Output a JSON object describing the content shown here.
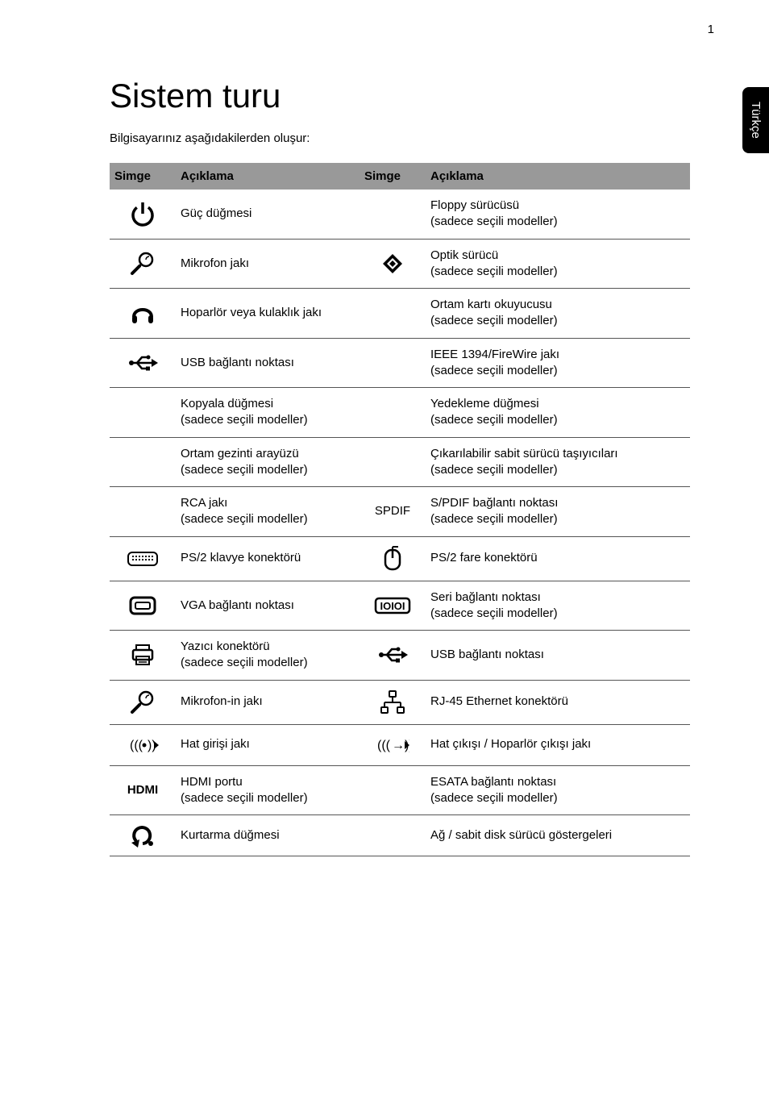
{
  "page_number": "1",
  "side_tab": "Türkçe",
  "title": "Sistem turu",
  "subtitle": "Bilgisayarınız aşağıdakilerden oluşur:",
  "headers": {
    "h1": "Simge",
    "h2": "Açıklama",
    "h3": "Simge",
    "h4": "Açıklama"
  },
  "icons": {
    "power": "power-icon",
    "mic": "microphone-icon",
    "headphone": "headphone-icon",
    "usb": "usb-icon",
    "optical": "optical-diamond-icon",
    "keyboard": "keyboard-icon",
    "mouse": "mouse-icon",
    "vga": "vga-icon",
    "serial": "serial-icon",
    "printer": "printer-icon",
    "usb2": "usb-icon",
    "mic2": "microphone-icon",
    "ethernet": "ethernet-icon",
    "linein": "line-in-icon",
    "lineout": "line-out-icon",
    "recovery": "recovery-icon"
  },
  "text_labels": {
    "hdmi": "HDMI",
    "spdif": "SPDIF"
  },
  "rows": [
    {
      "l": "Güç düğmesi",
      "r": "Floppy sürücüsü\n(sadece seçili modeller)"
    },
    {
      "l": "Mikrofon jakı",
      "r": "Optik sürücü\n(sadece seçili modeller)"
    },
    {
      "l": "Hoparlör veya kulaklık jakı",
      "r": "Ortam kartı okuyucusu\n(sadece seçili modeller)"
    },
    {
      "l": "USB bağlantı noktası",
      "r": "IEEE 1394/FireWire jakı\n(sadece seçili modeller)"
    },
    {
      "l": "Kopyala düğmesi\n(sadece seçili modeller)",
      "r": "Yedekleme düğmesi\n(sadece seçili modeller)"
    },
    {
      "l": "Ortam gezinti arayüzü\n(sadece seçili modeller)",
      "r": "Çıkarılabilir sabit sürücü taşıyıcıları\n(sadece seçili modeller)"
    },
    {
      "l": "RCA jakı\n(sadece seçili modeller)",
      "r": "S/PDIF bağlantı noktası\n(sadece seçili modeller)"
    },
    {
      "l": "PS/2 klavye konektörü",
      "r": "PS/2 fare konektörü"
    },
    {
      "l": "VGA bağlantı noktası",
      "r": "Seri bağlantı noktası\n(sadece seçili modeller)"
    },
    {
      "l": "Yazıcı konektörü\n(sadece seçili modeller)",
      "r": "USB bağlantı noktası"
    },
    {
      "l": "Mikrofon-in jakı",
      "r": "RJ-45 Ethernet konektörü"
    },
    {
      "l": "Hat girişi jakı",
      "r": "Hat çıkışı / Hoparlör çıkışı jakı"
    },
    {
      "l": "HDMI portu\n(sadece seçili modeller)",
      "r": "ESATA bağlantı noktası\n(sadece seçili modeller)"
    },
    {
      "l": "Kurtarma düğmesi",
      "r": "Ağ / sabit disk sürücü göstergeleri"
    }
  ],
  "colors": {
    "header_bg": "#999999",
    "border": "#555555",
    "text": "#000000",
    "bg": "#ffffff",
    "tab_bg": "#000000",
    "tab_text": "#ffffff"
  },
  "typography": {
    "title_fontsize": 42,
    "body_fontsize": 15,
    "header_fontsize": 15
  }
}
